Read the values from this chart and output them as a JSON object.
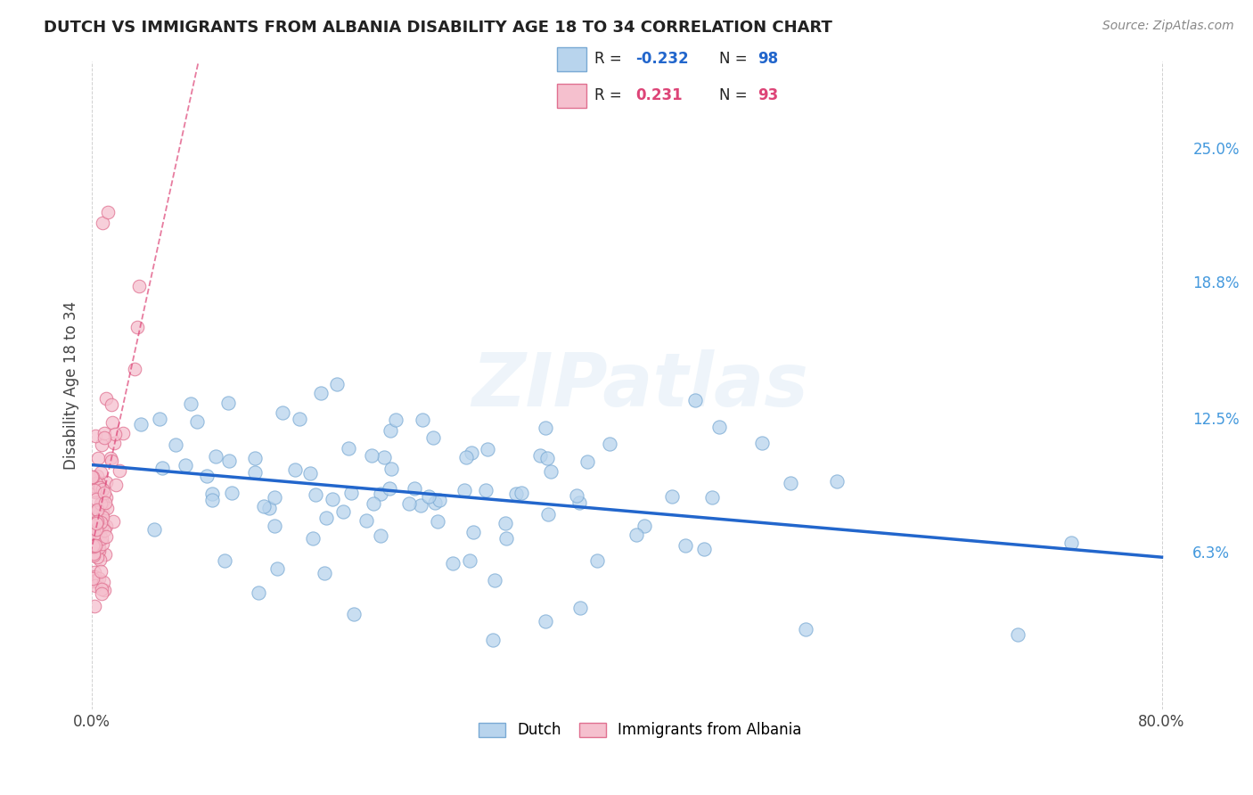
{
  "title": "DUTCH VS IMMIGRANTS FROM ALBANIA DISABILITY AGE 18 TO 34 CORRELATION CHART",
  "source": "Source: ZipAtlas.com",
  "ylabel": "Disability Age 18 to 34",
  "xlim": [
    0.0,
    0.82
  ],
  "ylim": [
    -0.01,
    0.29
  ],
  "xtick_positions": [
    0.0,
    0.8
  ],
  "xticklabels": [
    "0.0%",
    "80.0%"
  ],
  "yticks_right": [
    0.063,
    0.125,
    0.188,
    0.25
  ],
  "ytick_labels_right": [
    "6.3%",
    "12.5%",
    "18.8%",
    "25.0%"
  ],
  "dutch_color": "#b8d4ed",
  "dutch_edge_color": "#7aaad4",
  "albania_color": "#f5c0ce",
  "albania_edge_color": "#e07090",
  "dutch_R": -0.232,
  "dutch_N": 98,
  "albania_R": 0.231,
  "albania_N": 93,
  "dutch_line_color": "#2266cc",
  "albania_line_color": "#dd4477",
  "watermark": "ZIPatlas",
  "background_color": "#ffffff",
  "grid_color": "#cccccc",
  "title_color": "#222222",
  "legend_label_dutch": "Dutch",
  "legend_label_albania": "Immigrants from Albania"
}
